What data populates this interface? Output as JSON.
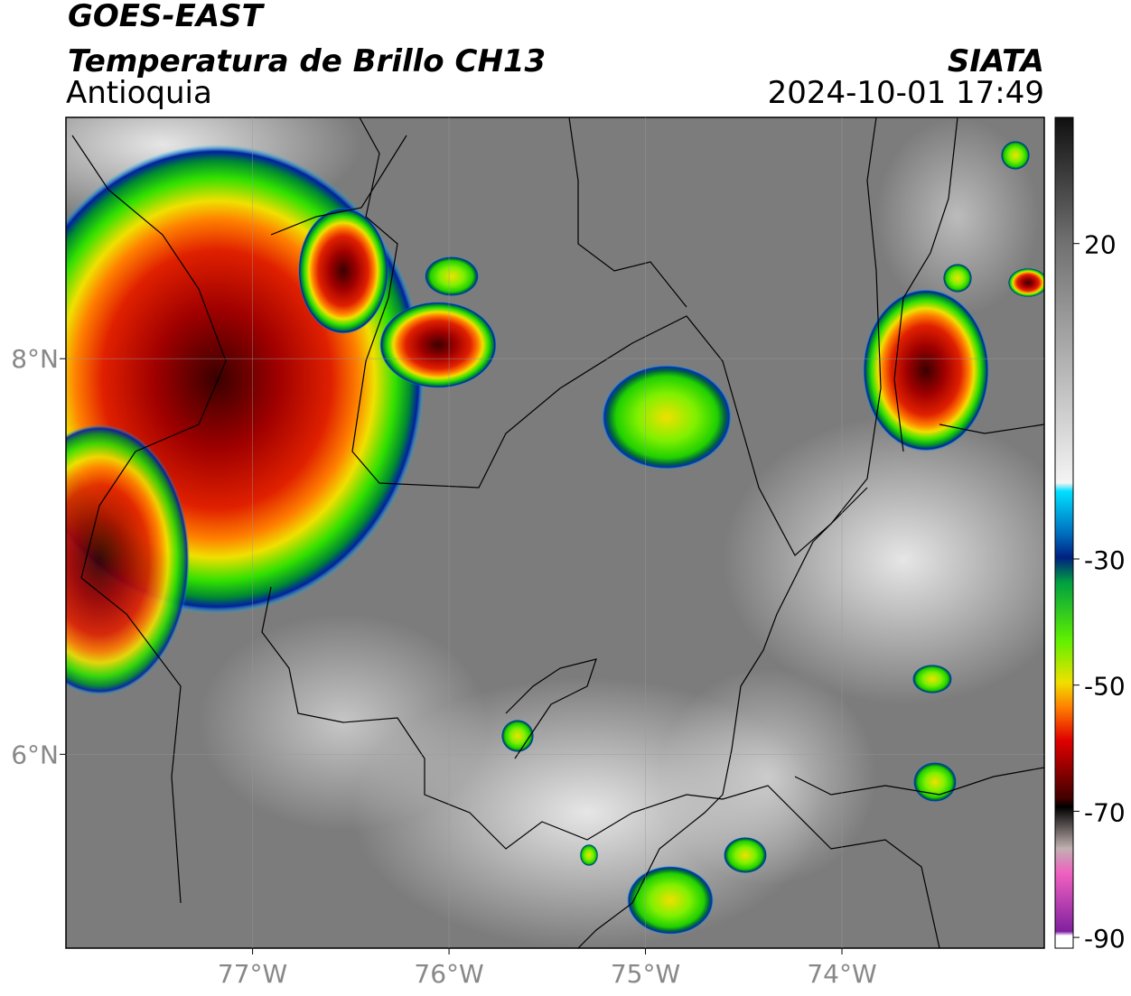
{
  "header": {
    "title": "GOES-EAST",
    "subtitle": "Temperatura de Brillo CH13",
    "region": "Antioquia",
    "source": "SIATA",
    "datetime": "2024-10-01 17:49"
  },
  "map": {
    "lon_range": [
      -77.95,
      -72.97
    ],
    "lat_range": [
      5.02,
      9.22
    ],
    "lon_ticks": [
      {
        "value": -77,
        "label": "77°W"
      },
      {
        "value": -76,
        "label": "76°W"
      },
      {
        "value": -75,
        "label": "75°W"
      },
      {
        "value": -74,
        "label": "74°W"
      }
    ],
    "lat_ticks": [
      {
        "value": 8,
        "label": "8°N"
      },
      {
        "value": 6,
        "label": "6°N"
      }
    ],
    "grid": true
  },
  "colorbar": {
    "range": [
      -91.7,
      40
    ],
    "ticks": [
      20,
      -30,
      -50,
      -70,
      -90
    ]
  }
}
